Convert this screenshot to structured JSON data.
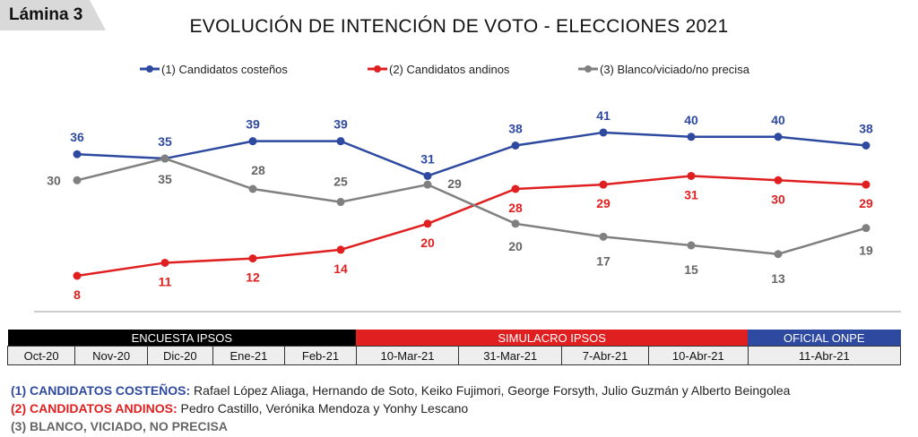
{
  "badge": "Lámina 3",
  "chart_data": {
    "type": "line",
    "title": "EVOLUCIÓN DE INTENCIÓN DE VOTO - ELECCIONES 2021",
    "categories": [
      "Oct-20",
      "Nov-20",
      "Dic-20",
      "Ene-21",
      "Feb-21",
      "10-Mar-21",
      "31-Mar-21",
      "7-Abr-21",
      "10-Abr-21",
      "11-Abr-21"
    ],
    "series": [
      {
        "name": "(1) Candidatos  costeños",
        "color": "#2e4aa0",
        "values": [
          36,
          35,
          39,
          39,
          31,
          38,
          41,
          40,
          40,
          38
        ]
      },
      {
        "name": "(2) Candidatos andinos",
        "color": "#e02020",
        "values": [
          8,
          11,
          12,
          14,
          20,
          28,
          29,
          31,
          30,
          29
        ]
      },
      {
        "name": "(3) Blanco/viciado/no precisa",
        "color": "#808080",
        "values": [
          30,
          35,
          28,
          25,
          29,
          20,
          17,
          15,
          13,
          19
        ]
      }
    ],
    "legend_position": "top",
    "grid": false,
    "groups": [
      {
        "label": "ENCUESTA IPSOS",
        "span": 5,
        "color": "#000000"
      },
      {
        "label": "SIMULACRO IPSOS",
        "span": 4,
        "color": "#e02020"
      },
      {
        "label": "OFICIAL ONPE",
        "span": 1,
        "color": "#2e4aa0"
      }
    ]
  },
  "notes": [
    {
      "head": "(1) CANDIDATOS COSTEÑOS:",
      "text": " Rafael López Aliaga, Hernando de Soto, Keiko Fujimori, George Forsyth, Julio Guzmán y Alberto Beingolea",
      "color": "#2e4aa0"
    },
    {
      "head": "(2) CANDIDATOS ANDINOS:",
      "text": " Pedro Castillo, Verónika Mendoza y Yonhy Lescano",
      "color": "#e02020"
    },
    {
      "head": "(3) BLANCO, VICIADO, NO PRECISA",
      "text": "",
      "color": "#666666"
    }
  ]
}
